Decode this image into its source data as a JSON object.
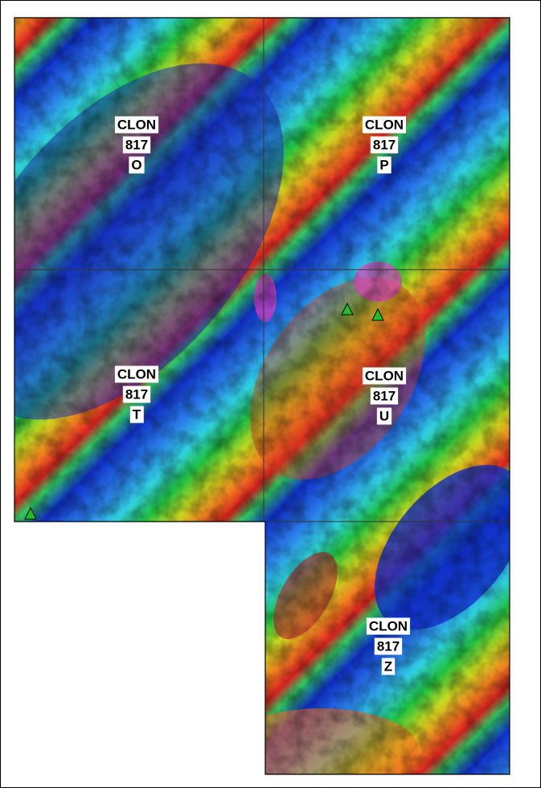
{
  "tiles": [
    {
      "lines": [
        "CLON",
        "817",
        "O"
      ]
    },
    {
      "lines": [
        "CLON",
        "817",
        "P"
      ]
    },
    {
      "lines": [
        "CLON",
        "817",
        "T"
      ]
    },
    {
      "lines": [
        "CLON",
        "817",
        "U"
      ]
    },
    {
      "lines": [
        "CLON",
        "817",
        "Z"
      ]
    }
  ]
}
